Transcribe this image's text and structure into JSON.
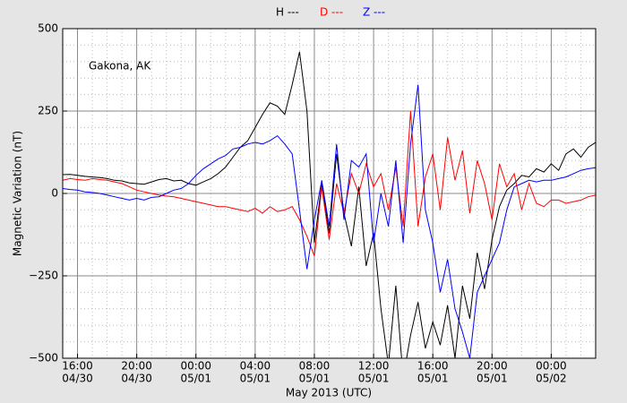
{
  "chart_data": {
    "type": "line",
    "annotation": "Gakona, AK",
    "ylabel": "Magnetic Variation (nT)",
    "xlabel": "May 2013 (UTC)",
    "xlim": [
      15,
      51
    ],
    "ylim": [
      -500,
      500
    ],
    "xticks": [
      {
        "value": 16,
        "label": [
          "16:00",
          "04/30"
        ]
      },
      {
        "value": 20,
        "label": [
          "20:00",
          "04/30"
        ]
      },
      {
        "value": 24,
        "label": [
          "00:00",
          "05/01"
        ]
      },
      {
        "value": 28,
        "label": [
          "04:00",
          "05/01"
        ]
      },
      {
        "value": 32,
        "label": [
          "08:00",
          "05/01"
        ]
      },
      {
        "value": 36,
        "label": [
          "12:00",
          "05/01"
        ]
      },
      {
        "value": 40,
        "label": [
          "16:00",
          "05/01"
        ]
      },
      {
        "value": 44,
        "label": [
          "20:00",
          "05/01"
        ]
      },
      {
        "value": 48,
        "label": [
          "00:00",
          "05/02"
        ]
      }
    ],
    "yticks": [
      {
        "value": -500,
        "label": "−500"
      },
      {
        "value": -250,
        "label": "−250"
      },
      0,
      250,
      500
    ],
    "xminor": [
      15,
      17,
      18,
      19,
      21,
      22,
      23,
      25,
      26,
      27,
      29,
      30,
      31,
      33,
      34,
      35,
      37,
      38,
      39,
      41,
      42,
      43,
      45,
      46,
      47,
      49,
      50,
      51
    ],
    "yminor": [
      -450,
      -400,
      -350,
      -300,
      -200,
      -150,
      -100,
      -50,
      50,
      100,
      150,
      200,
      300,
      350,
      400,
      450
    ],
    "grid": true,
    "legend": "top",
    "x": [
      15,
      15.5,
      16,
      16.5,
      17,
      17.5,
      18,
      18.5,
      19,
      19.5,
      20,
      20.5,
      21,
      21.5,
      22,
      22.5,
      23,
      23.5,
      24,
      24.5,
      25,
      25.5,
      26,
      26.5,
      27,
      27.5,
      28,
      28.5,
      29,
      29.5,
      30,
      30.5,
      31,
      31.5,
      32,
      32.5,
      33,
      33.5,
      34,
      34.5,
      35,
      35.5,
      36,
      36.5,
      37,
      37.5,
      38,
      38.5,
      39,
      39.5,
      40,
      40.5,
      41,
      41.5,
      42,
      42.5,
      43,
      43.5,
      44,
      44.5,
      45,
      45.5,
      46,
      46.5,
      47,
      47.5,
      48,
      48.5,
      49,
      49.5,
      50,
      50.5,
      51
    ],
    "series": [
      {
        "name": "H ---",
        "color": "#000000",
        "values": [
          57,
          58,
          55,
          52,
          50,
          48,
          45,
          40,
          38,
          32,
          30,
          28,
          35,
          42,
          45,
          38,
          40,
          30,
          25,
          35,
          45,
          60,
          80,
          110,
          140,
          160,
          200,
          240,
          275,
          265,
          240,
          330,
          430,
          250,
          -150,
          30,
          -120,
          120,
          -60,
          -160,
          20,
          -220,
          -120,
          -350,
          -520,
          -280,
          -560,
          -430,
          -330,
          -470,
          -390,
          -460,
          -340,
          -500,
          -280,
          -380,
          -180,
          -290,
          -140,
          -40,
          10,
          30,
          55,
          50,
          75,
          65,
          90,
          70,
          120,
          135,
          110,
          140,
          155
        ]
      },
      {
        "name": "D ---",
        "color": "#ff0000",
        "values": [
          40,
          45,
          42,
          40,
          45,
          42,
          40,
          35,
          30,
          20,
          10,
          5,
          0,
          -5,
          -8,
          -10,
          -15,
          -20,
          -25,
          -30,
          -35,
          -40,
          -40,
          -45,
          -50,
          -55,
          -45,
          -60,
          -40,
          -55,
          -50,
          -40,
          -80,
          -130,
          -190,
          20,
          -140,
          30,
          -60,
          60,
          0,
          90,
          20,
          60,
          -50,
          80,
          -100,
          250,
          -100,
          50,
          120,
          -50,
          170,
          40,
          130,
          -60,
          100,
          30,
          -80,
          90,
          20,
          60,
          -50,
          30,
          -30,
          -40,
          -20,
          -20,
          -30,
          -25,
          -20,
          -10,
          -5
        ]
      },
      {
        "name": "Z ---",
        "color": "#0000ff",
        "values": [
          15,
          12,
          10,
          5,
          3,
          0,
          -5,
          -10,
          -15,
          -20,
          -15,
          -20,
          -12,
          -10,
          0,
          10,
          15,
          30,
          55,
          75,
          90,
          105,
          115,
          135,
          140,
          150,
          155,
          150,
          160,
          175,
          150,
          120,
          -50,
          -230,
          -80,
          40,
          -100,
          150,
          -80,
          100,
          80,
          120,
          -150,
          0,
          -100,
          100,
          -150,
          150,
          330,
          -50,
          -150,
          -300,
          -200,
          -350,
          -420,
          -500,
          -300,
          -250,
          -200,
          -150,
          -50,
          20,
          30,
          40,
          35,
          40,
          40,
          45,
          50,
          60,
          70,
          75,
          78
        ]
      }
    ]
  }
}
